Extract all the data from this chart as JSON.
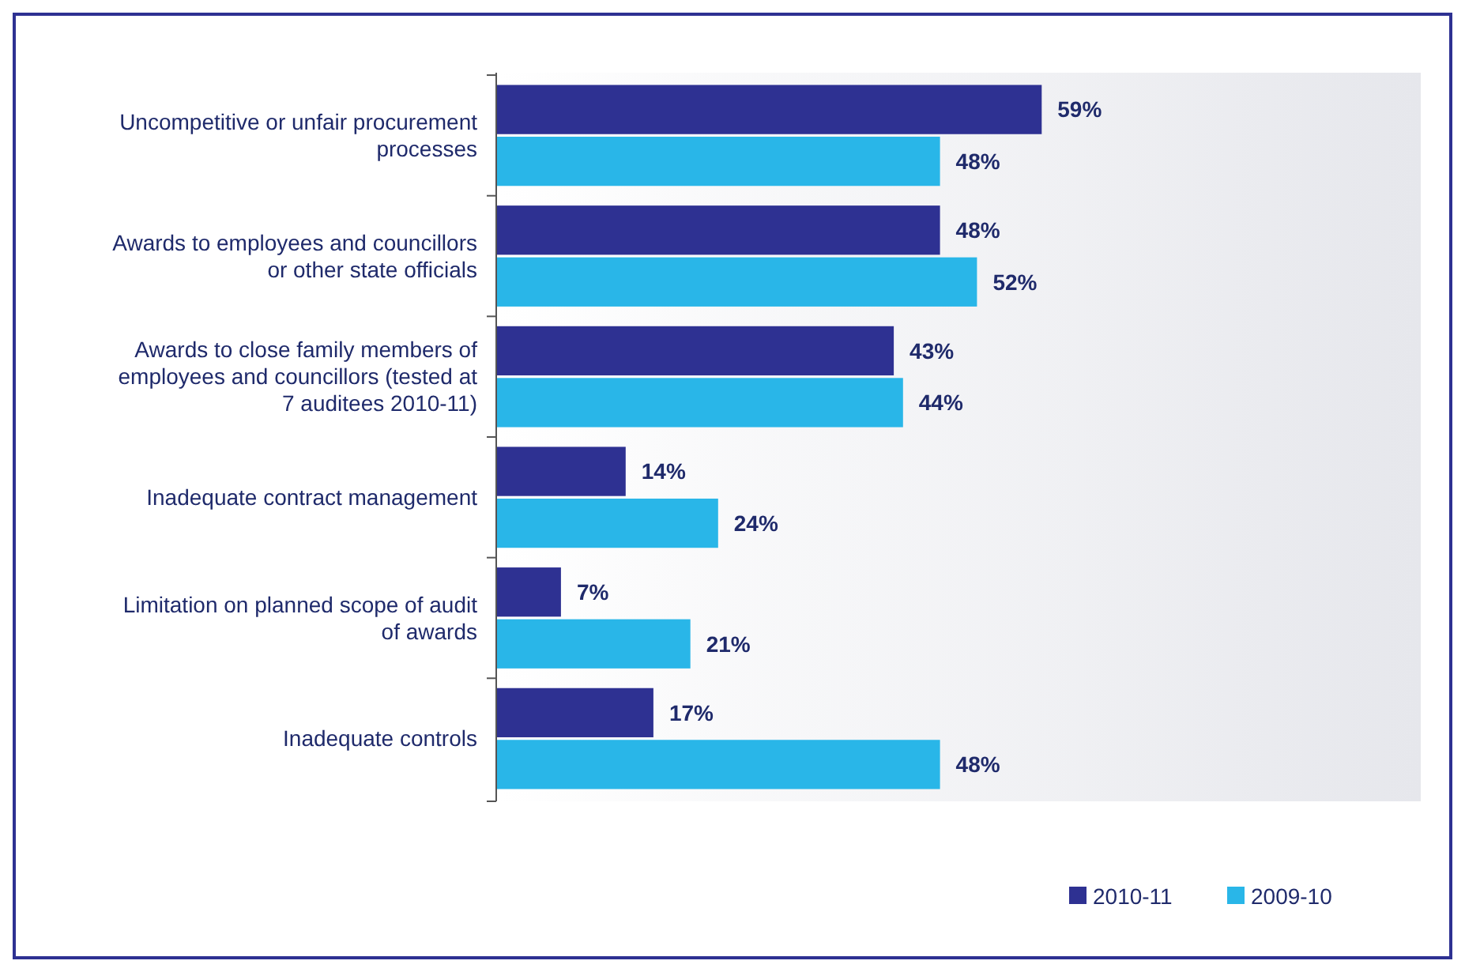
{
  "chart_data": {
    "type": "bar",
    "orientation": "horizontal",
    "categories": [
      "Uncompetitive or unfair procurement processes",
      "Awards to employees and councillors or other state officials",
      "Awards to close family members of employees and councillors (tested at 7 auditees 2010-11)",
      "Inadequate contract management",
      "Limitation on planned scope of audit of awards",
      "Inadequate controls"
    ],
    "series": [
      {
        "name": "2010-11",
        "color": "#2e3192",
        "values": [
          59,
          48,
          43,
          14,
          7,
          17
        ],
        "value_labels": [
          "59%",
          "48%",
          "43%",
          "14%",
          "7%",
          "17%"
        ]
      },
      {
        "name": "2009-10",
        "color": "#29b6e8",
        "values": [
          48,
          52,
          44,
          24,
          21,
          48
        ],
        "value_labels": [
          "48%",
          "52%",
          "44%",
          "24%",
          "21%",
          "48%"
        ]
      }
    ],
    "xlim": [
      0,
      100
    ],
    "tick_labels": "y",
    "legend": "bottom"
  }
}
